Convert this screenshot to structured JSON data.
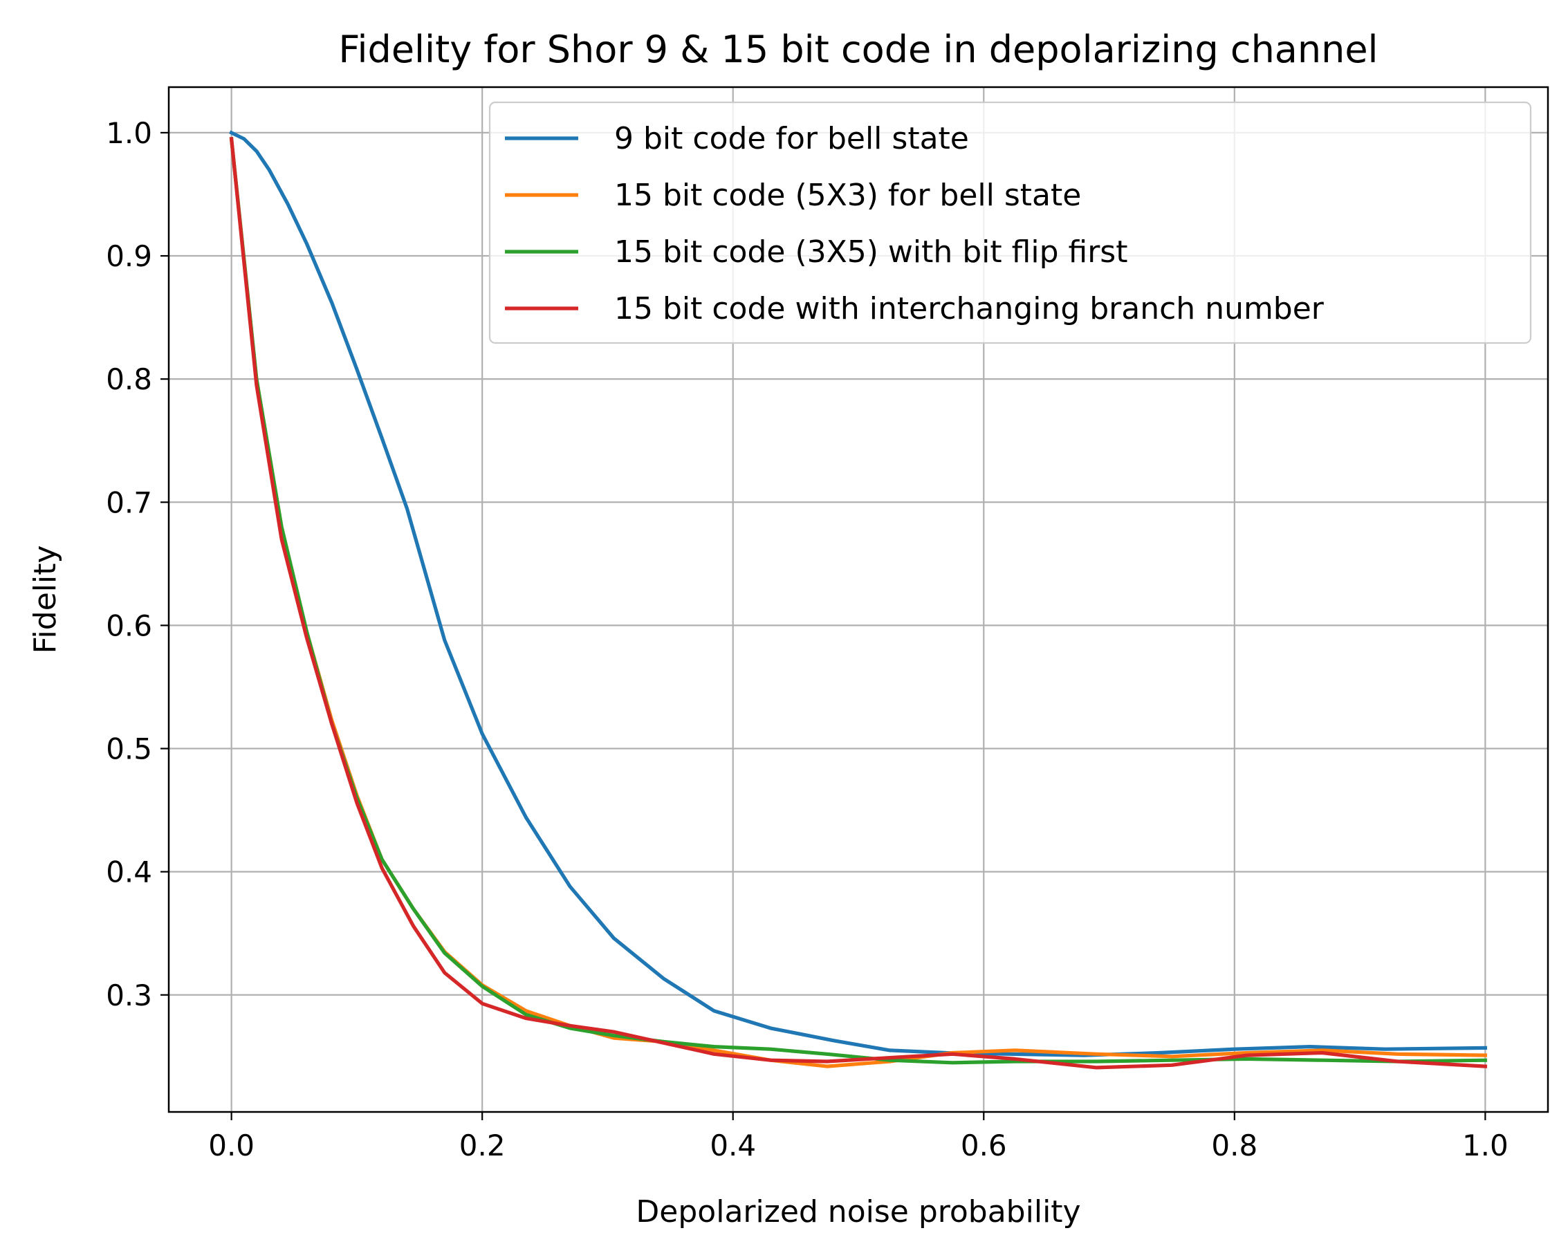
{
  "chart_data": {
    "type": "line",
    "title": "Fidelity for Shor 9 & 15 bit code in depolarizing channel",
    "xlabel": "Depolarized noise probability",
    "ylabel": "Fidelity",
    "xlim": [
      -0.05,
      1.05
    ],
    "ylim": [
      0.205,
      1.037
    ],
    "xticks": [
      0.0,
      0.2,
      0.4,
      0.6,
      0.8,
      1.0
    ],
    "yticks": [
      0.3,
      0.4,
      0.5,
      0.6,
      0.7,
      0.8,
      0.9,
      1.0
    ],
    "xtick_labels": [
      "0.0",
      "0.2",
      "0.4",
      "0.6",
      "0.8",
      "1.0"
    ],
    "ytick_labels": [
      "0.3",
      "0.4",
      "0.5",
      "0.6",
      "0.7",
      "0.8",
      "0.9",
      "1.0"
    ],
    "grid": true,
    "legend_position": "upper right",
    "series": [
      {
        "name": "9 bit code for bell state",
        "color": "#1f77b4",
        "x": [
          0.0,
          0.01,
          0.02,
          0.03,
          0.045,
          0.06,
          0.08,
          0.1,
          0.12,
          0.14,
          0.17,
          0.2,
          0.235,
          0.27,
          0.305,
          0.345,
          0.385,
          0.43,
          0.48,
          0.525,
          0.57,
          0.62,
          0.68,
          0.74,
          0.8,
          0.86,
          0.92,
          1.0
        ],
        "y": [
          1.0,
          0.995,
          0.985,
          0.97,
          0.942,
          0.91,
          0.862,
          0.808,
          0.752,
          0.695,
          0.588,
          0.512,
          0.444,
          0.388,
          0.346,
          0.313,
          0.287,
          0.273,
          0.263,
          0.255,
          0.253,
          0.252,
          0.251,
          0.253,
          0.256,
          0.258,
          0.256,
          0.257
        ]
      },
      {
        "name": "15 bit code (5X3) for bell state",
        "color": "#ff7f0e",
        "x": [
          0.0,
          0.02,
          0.04,
          0.06,
          0.08,
          0.1,
          0.12,
          0.145,
          0.17,
          0.2,
          0.235,
          0.27,
          0.305,
          0.345,
          0.385,
          0.43,
          0.475,
          0.525,
          0.575,
          0.625,
          0.69,
          0.75,
          0.81,
          0.87,
          0.93,
          1.0
        ],
        "y": [
          0.995,
          0.8,
          0.68,
          0.595,
          0.523,
          0.462,
          0.41,
          0.37,
          0.335,
          0.308,
          0.287,
          0.275,
          0.265,
          0.262,
          0.255,
          0.247,
          0.242,
          0.246,
          0.253,
          0.255,
          0.252,
          0.25,
          0.253,
          0.255,
          0.252,
          0.251
        ]
      },
      {
        "name": "15 bit code (3X5) with bit flip first",
        "color": "#2ca02c",
        "x": [
          0.0,
          0.02,
          0.04,
          0.06,
          0.08,
          0.1,
          0.12,
          0.145,
          0.17,
          0.2,
          0.235,
          0.27,
          0.305,
          0.345,
          0.385,
          0.43,
          0.475,
          0.525,
          0.575,
          0.625,
          0.69,
          0.75,
          0.81,
          0.87,
          0.93,
          1.0
        ],
        "y": [
          0.995,
          0.8,
          0.68,
          0.595,
          0.52,
          0.46,
          0.41,
          0.37,
          0.334,
          0.307,
          0.284,
          0.273,
          0.267,
          0.262,
          0.258,
          0.256,
          0.252,
          0.247,
          0.245,
          0.246,
          0.246,
          0.247,
          0.248,
          0.247,
          0.246,
          0.247
        ]
      },
      {
        "name": "15 bit code with interchanging branch number",
        "color": "#d62728",
        "x": [
          0.0,
          0.02,
          0.04,
          0.06,
          0.08,
          0.1,
          0.12,
          0.145,
          0.17,
          0.2,
          0.235,
          0.27,
          0.305,
          0.345,
          0.385,
          0.43,
          0.475,
          0.525,
          0.575,
          0.625,
          0.69,
          0.75,
          0.81,
          0.87,
          0.93,
          1.0
        ],
        "y": [
          0.995,
          0.795,
          0.67,
          0.59,
          0.52,
          0.456,
          0.403,
          0.356,
          0.318,
          0.293,
          0.281,
          0.275,
          0.27,
          0.261,
          0.252,
          0.247,
          0.246,
          0.249,
          0.252,
          0.248,
          0.241,
          0.243,
          0.251,
          0.253,
          0.246,
          0.242
        ]
      }
    ]
  }
}
